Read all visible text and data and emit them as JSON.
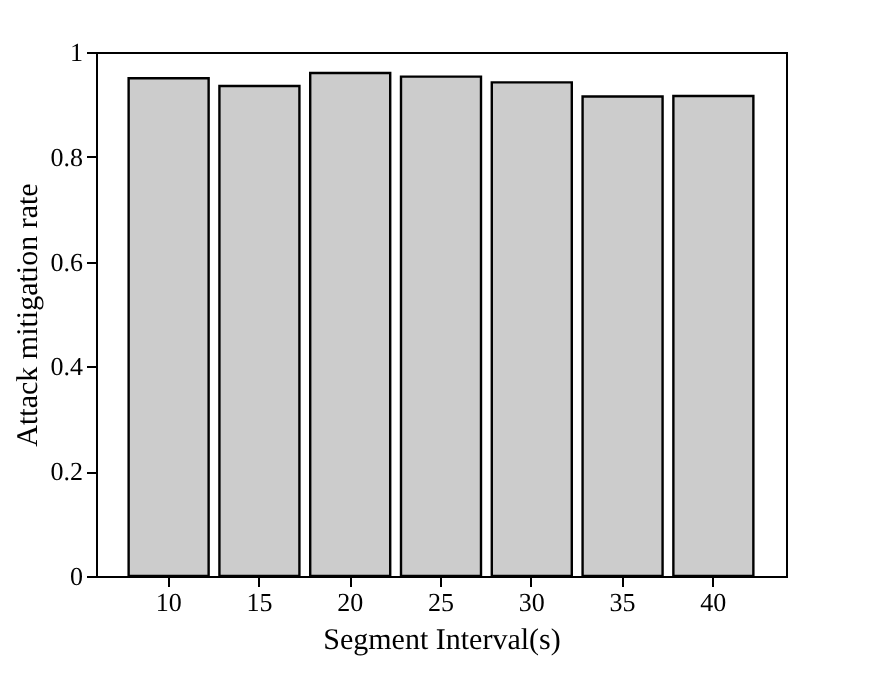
{
  "chart_data": {
    "type": "bar",
    "xlabel": "Segment Interval(s)",
    "ylabel": "Attack mitigation rate",
    "categories": [
      "10",
      "15",
      "20",
      "25",
      "30",
      "35",
      "40"
    ],
    "values": [
      0.95,
      0.935,
      0.96,
      0.953,
      0.942,
      0.915,
      0.916
    ],
    "color": "#cccccc",
    "ylim": [
      0,
      1
    ],
    "yticks": [
      0,
      0.2,
      0.4,
      0.6,
      0.8,
      1
    ],
    "grid": false
  }
}
